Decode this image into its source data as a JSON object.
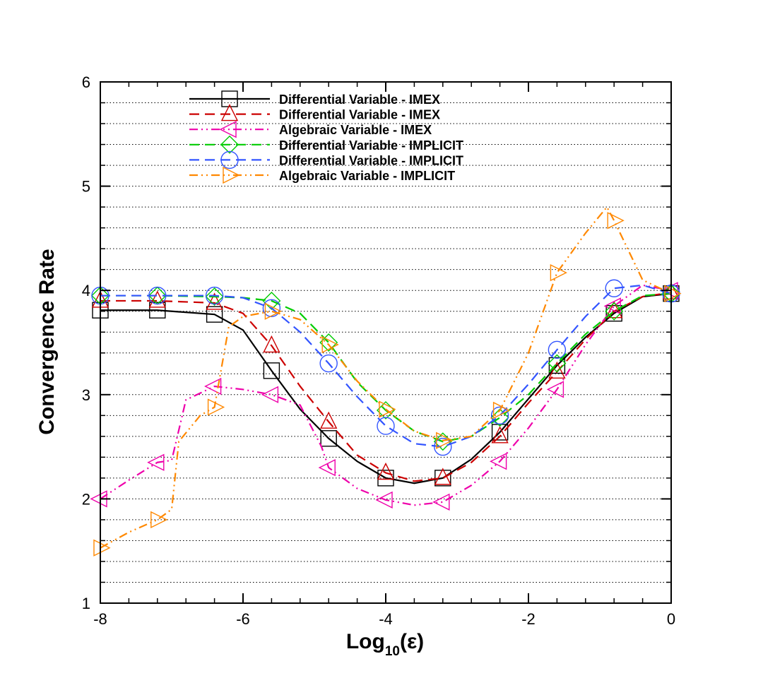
{
  "chart_data": {
    "type": "line",
    "xlabel_main": "Log",
    "xlabel_sub": "10",
    "xlabel_rest": "(ε)",
    "ylabel": "Convergence Rate",
    "xlim": [
      -8,
      0
    ],
    "ylim": [
      1,
      6
    ],
    "x_ticks": [
      -8,
      -6,
      -4,
      -2,
      0
    ],
    "x_tick_labels": [
      "-8",
      "-6",
      "-4",
      "-2",
      "0"
    ],
    "y_ticks": [
      1,
      2,
      3,
      4,
      5,
      6
    ],
    "y_tick_labels": [
      "1",
      "2",
      "3",
      "4",
      "5",
      "6"
    ],
    "grid": "horizontal-dotted",
    "legend_position": "top",
    "series": [
      {
        "name": "Differential Variable - IMEX",
        "color": "#000000",
        "dash": "solid",
        "marker": "square",
        "x": [
          -8,
          -7.2,
          -6.4,
          -6,
          -5.6,
          -5.2,
          -4.8,
          -4.4,
          -4,
          -3.6,
          -3.2,
          -2.8,
          -2.4,
          -2,
          -1.6,
          -1.2,
          -0.8,
          -0.4,
          0
        ],
        "y": [
          3.81,
          3.81,
          3.77,
          3.62,
          3.23,
          2.86,
          2.58,
          2.36,
          2.2,
          2.15,
          2.2,
          2.38,
          2.64,
          2.96,
          3.28,
          3.55,
          3.78,
          3.94,
          3.97
        ]
      },
      {
        "name": "Differential Variable - IMEX",
        "color": "#cc0000",
        "dash": "long",
        "marker": "triangle-up",
        "x": [
          -8,
          -7.2,
          -6.4,
          -6,
          -5.6,
          -5.2,
          -4.8,
          -4.4,
          -4,
          -3.6,
          -3.2,
          -2.8,
          -2.4,
          -2,
          -1.6,
          -1.2,
          -0.8,
          -0.4,
          0
        ],
        "y": [
          3.9,
          3.9,
          3.88,
          3.78,
          3.47,
          3.08,
          2.74,
          2.42,
          2.25,
          2.17,
          2.2,
          2.35,
          2.6,
          2.92,
          3.22,
          3.53,
          3.8,
          3.94,
          3.98
        ]
      },
      {
        "name": "Algebraic Variable - IMEX",
        "color": "#ee00aa",
        "dash": "dashdotdot",
        "marker": "triangle-left",
        "x": [
          -8,
          -7.6,
          -7.2,
          -7,
          -6.8,
          -6.4,
          -6,
          -5.6,
          -5.2,
          -4.9,
          -4.8,
          -4.4,
          -4,
          -3.6,
          -3.2,
          -2.8,
          -2.4,
          -2,
          -1.6,
          -1.2,
          -0.8,
          -0.4,
          0
        ],
        "y": [
          2.0,
          2.18,
          2.35,
          2.37,
          2.95,
          3.08,
          3.05,
          3.0,
          2.9,
          2.5,
          2.3,
          2.1,
          1.99,
          1.94,
          1.97,
          2.13,
          2.36,
          2.68,
          3.05,
          3.48,
          3.85,
          4.05,
          4.0
        ]
      },
      {
        "name": "Differential Variable - IMPLICIT",
        "color": "#00cc00",
        "dash": "long",
        "marker": "diamond",
        "x": [
          -8,
          -7.2,
          -6.4,
          -6,
          -5.6,
          -5.2,
          -4.8,
          -4.4,
          -4,
          -3.6,
          -3.2,
          -2.8,
          -2.4,
          -2,
          -1.6,
          -1.2,
          -0.8,
          -0.4,
          0
        ],
        "y": [
          3.95,
          3.95,
          3.94,
          3.93,
          3.9,
          3.78,
          3.5,
          3.12,
          2.85,
          2.65,
          2.55,
          2.6,
          2.78,
          3.0,
          3.3,
          3.58,
          3.8,
          3.95,
          3.97
        ]
      },
      {
        "name": "Differential Variable - IMPLICIT",
        "color": "#3355ff",
        "dash": "long",
        "marker": "circle",
        "x": [
          -8,
          -7.2,
          -6.4,
          -6,
          -5.6,
          -5.2,
          -4.8,
          -4.4,
          -4,
          -3.6,
          -3.2,
          -2.8,
          -2.4,
          -2,
          -1.6,
          -1.2,
          -0.8,
          -0.4,
          0
        ],
        "y": [
          3.95,
          3.95,
          3.95,
          3.93,
          3.83,
          3.6,
          3.3,
          2.98,
          2.7,
          2.53,
          2.5,
          2.6,
          2.8,
          3.1,
          3.43,
          3.75,
          4.02,
          4.05,
          3.97
        ]
      },
      {
        "name": "Algebraic Variable - IMPLICIT",
        "color": "#ff8800",
        "dash": "dashdotdot",
        "marker": "triangle-right",
        "x": [
          -8,
          -7.6,
          -7.2,
          -7,
          -6.9,
          -6.6,
          -6.4,
          -6.2,
          -6,
          -5.6,
          -5.2,
          -4.8,
          -4.4,
          -4,
          -3.6,
          -3.2,
          -2.8,
          -2.4,
          -2,
          -1.6,
          -1.2,
          -0.9,
          -0.8,
          -0.4,
          0
        ],
        "y": [
          1.53,
          1.68,
          1.8,
          1.9,
          2.55,
          2.8,
          2.88,
          3.65,
          3.75,
          3.8,
          3.72,
          3.48,
          3.13,
          2.86,
          2.65,
          2.56,
          2.6,
          2.85,
          3.4,
          4.17,
          4.55,
          4.8,
          4.67,
          4.1,
          3.97
        ]
      }
    ]
  }
}
